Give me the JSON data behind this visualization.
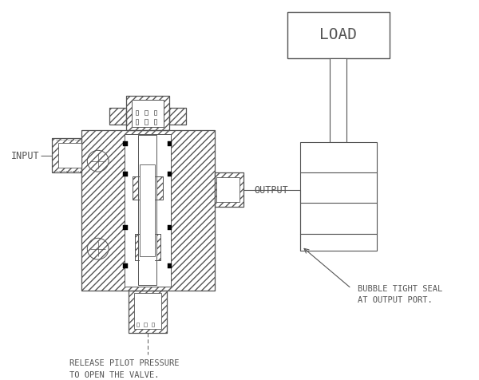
{
  "bg_color": "#ffffff",
  "line_color": "#555555",
  "annotations": {
    "input": "INPUT",
    "output": "OUTPUT",
    "release_pilot": "RELEASE PILOT PRESSURE\nTO OPEN THE VALVE.",
    "bubble_tight": "BUBBLE TIGHT SEAL\nAT OUTPUT PORT.",
    "load": "LOAD"
  },
  "font_size_small": 7.5,
  "font_size_load": 14
}
